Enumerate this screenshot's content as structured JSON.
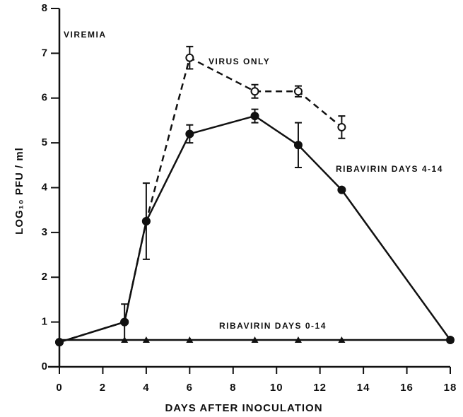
{
  "chart_data": {
    "type": "line",
    "annotations": [
      "VIREMIA"
    ],
    "x_label": "DAYS AFTER INOCULATION",
    "y_label": "LOG₁₀ PFU / ml",
    "xlim": [
      0,
      18
    ],
    "xticks": [
      0,
      2,
      4,
      6,
      8,
      10,
      12,
      14,
      16,
      18
    ],
    "ylim": [
      0,
      8
    ],
    "yticks": [
      0,
      1,
      2,
      3,
      4,
      5,
      6,
      7,
      8
    ],
    "series": [
      {
        "name": "VIRUS ONLY",
        "color": "#111111",
        "marker": "open-circle",
        "dashed": true,
        "x": [
          0,
          3,
          4,
          6,
          9,
          11,
          13
        ],
        "values": [
          0.55,
          1.0,
          3.25,
          6.9,
          6.15,
          6.15,
          5.35
        ],
        "errors": [
          null,
          null,
          null,
          0.25,
          0.15,
          0.12,
          0.25
        ]
      },
      {
        "name": "RIBAVIRIN DAYS 4-14",
        "color": "#111111",
        "marker": "filled-circle",
        "dashed": false,
        "x": [
          0,
          3,
          4,
          6,
          9,
          11,
          13,
          18
        ],
        "values": [
          0.55,
          1.0,
          3.25,
          5.2,
          5.6,
          4.95,
          3.95,
          0.6
        ],
        "errors": [
          null,
          0.4,
          0.85,
          0.2,
          0.15,
          0.5,
          null,
          null
        ]
      },
      {
        "name": "RIBAVIRIN DAYS 0-14",
        "color": "#111111",
        "marker": "filled-triangle",
        "dashed": false,
        "x": [
          0,
          3,
          4,
          6,
          9,
          11,
          13,
          18
        ],
        "values": [
          0.6,
          0.6,
          0.6,
          0.6,
          0.6,
          0.6,
          0.6,
          0.6
        ],
        "errors": [
          null,
          null,
          null,
          null,
          null,
          null,
          null,
          null
        ]
      }
    ]
  }
}
